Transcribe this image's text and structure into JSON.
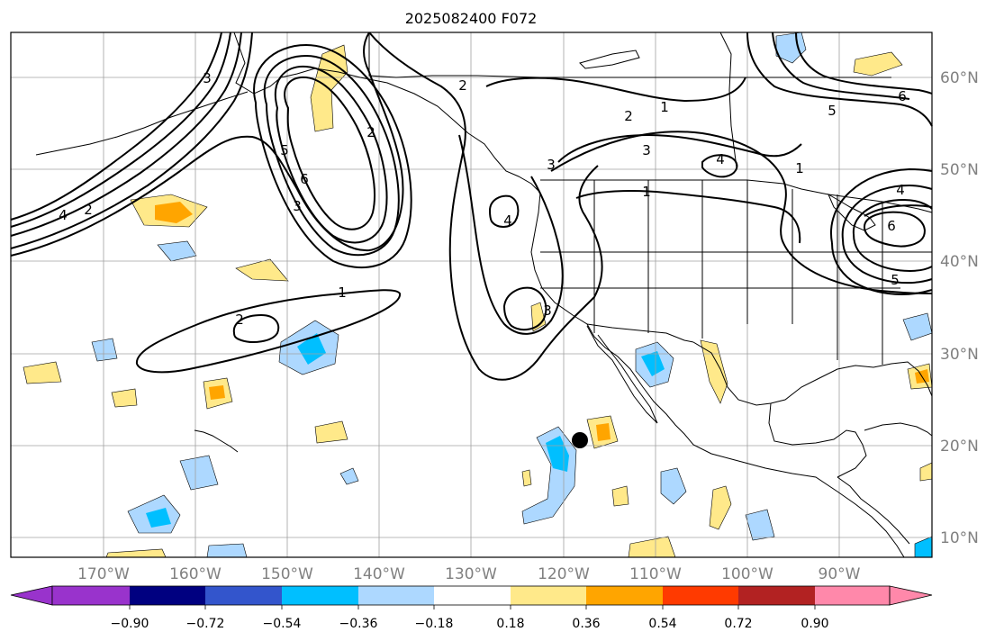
{
  "title": "2025082400 F072",
  "longitude_labels": [
    "170°W",
    "160°W",
    "150°W",
    "140°W",
    "130°W",
    "120°W",
    "110°W",
    "100°W",
    "90°W"
  ],
  "latitude_labels": [
    "60°N",
    "50°N",
    "40°N",
    "30°N",
    "20°N",
    "10°N"
  ],
  "colorbar": {
    "tick_labels": [
      "−0.90",
      "−0.72",
      "−0.54",
      "−0.36",
      "−0.18",
      "0.18",
      "0.36",
      "0.54",
      "0.72",
      "0.90"
    ],
    "colors": [
      "#9933cc",
      "#000080",
      "#3355cc",
      "#00bfff",
      "#add8ff",
      "#ffffff",
      "#ffe98a",
      "#ffa500",
      "#ff3a00",
      "#b22222",
      "#ff88aa"
    ]
  },
  "contour_labels": [
    "1",
    "1",
    "1",
    "1",
    "2",
    "2",
    "2",
    "2",
    "2",
    "3",
    "3",
    "3",
    "3",
    "3",
    "4",
    "4",
    "4",
    "4",
    "5",
    "5",
    "5",
    "6",
    "6",
    "6"
  ],
  "fill_colors": {
    "light_blue": "#add8ff",
    "blue": "#00bfff",
    "light_yellow": "#ffe98a",
    "orange": "#ffa500"
  },
  "marker_color": "#000000",
  "grid_color": "#a0a0a0",
  "axis_label_color": "#808080"
}
